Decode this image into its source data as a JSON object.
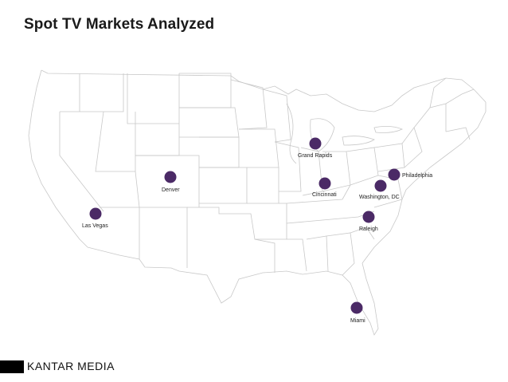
{
  "title": "Spot TV Markets Analyzed",
  "logo": {
    "text": "KANTAR MEDIA",
    "color": "#000000"
  },
  "marker_color": "#4b2a66",
  "markets": [
    {
      "name": "Grand Rapids"
    },
    {
      "name": "Philadelphia"
    },
    {
      "name": "Cincinnati"
    },
    {
      "name": "Washington, DC"
    },
    {
      "name": "Denver"
    },
    {
      "name": "Las Vegas"
    },
    {
      "name": "Raleigh"
    },
    {
      "name": "Miami"
    }
  ]
}
